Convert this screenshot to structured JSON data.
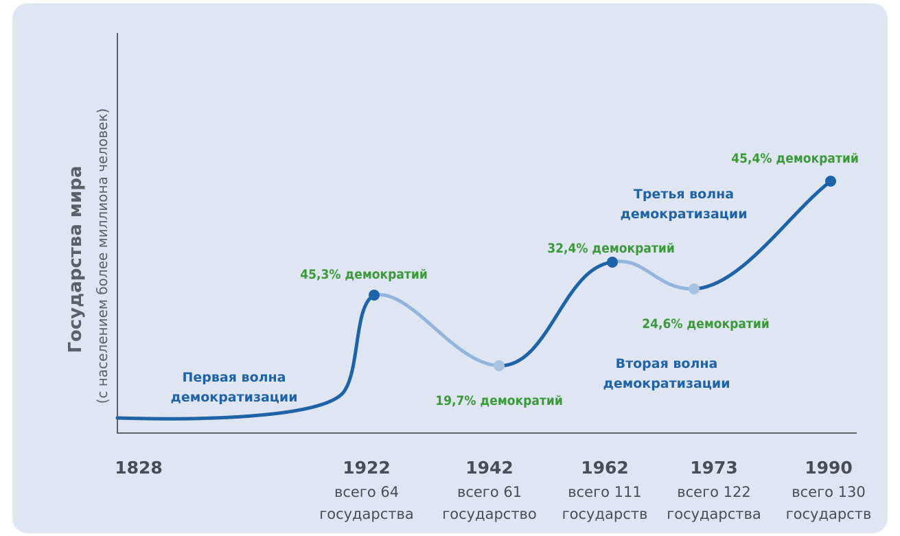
{
  "chart_data": {
    "type": "line",
    "ylabel": "Государства мира",
    "ylabel_sub": "(с населением более миллиона человек)",
    "x": [
      "1828",
      "1922",
      "1942",
      "1962",
      "1973",
      "1990"
    ],
    "x_sub": [
      [
        "",
        ""
      ],
      [
        "всего 64",
        "государства"
      ],
      [
        "всего 61",
        "государство"
      ],
      [
        "всего 111",
        "государств"
      ],
      [
        "всего 122",
        "государства"
      ],
      [
        "всего 130",
        "государств"
      ]
    ],
    "values": [
      null,
      45.3,
      19.7,
      32.4,
      24.6,
      45.4
    ],
    "point_labels": [
      "",
      "45,3% демократий",
      "19,7% демократий",
      "32,4% демократий",
      "24,6% демократий",
      "45,4% демократий"
    ],
    "waves": [
      {
        "label": [
          "Первая волна",
          "демократизации"
        ],
        "from": "1828",
        "to": "1922"
      },
      {
        "label": [
          "Вторая волна",
          "демократизации"
        ],
        "from": "1942",
        "to": "1962"
      },
      {
        "label": [
          "Третья волна",
          "демократизации"
        ],
        "from": "1973",
        "to": "1990"
      }
    ],
    "colors": {
      "wave": "#1e62a8",
      "reverse": "#93b4dc",
      "label_pct": "#3a9a3a",
      "axis": "#5d6067"
    }
  }
}
